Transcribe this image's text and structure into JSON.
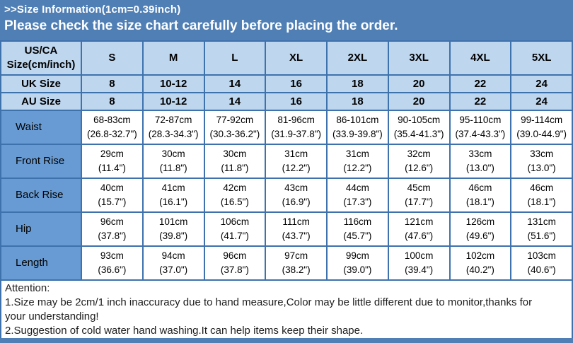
{
  "banner": {
    "title": ">>Size Information(1cm=0.39inch)",
    "subtitle": "Please check the size chart carefully before placing the order."
  },
  "table": {
    "corner_label": "US/CA\nSize(cm/inch)",
    "size_cols": [
      "S",
      "M",
      "L",
      "XL",
      "2XL",
      "3XL",
      "4XL",
      "5XL"
    ],
    "uk": {
      "label": "UK Size",
      "cells": [
        "8",
        "10-12",
        "14",
        "16",
        "18",
        "20",
        "22",
        "24"
      ]
    },
    "au": {
      "label": "AU Size",
      "cells": [
        "8",
        "10-12",
        "14",
        "16",
        "18",
        "20",
        "22",
        "24"
      ]
    },
    "measurements": [
      {
        "label": "Waist",
        "cells": [
          "68-83cm\n(26.8-32.7\")",
          "72-87cm\n(28.3-34.3\")",
          "77-92cm\n(30.3-36.2\")",
          "81-96cm\n(31.9-37.8\")",
          "86-101cm\n(33.9-39.8\")",
          "90-105cm\n(35.4-41.3\")",
          "95-110cm\n(37.4-43.3\")",
          "99-114cm\n(39.0-44.9\")"
        ]
      },
      {
        "label": "Front Rise",
        "cells": [
          "29cm\n(11.4\")",
          "30cm\n(11.8\")",
          "30cm\n(11.8\")",
          "31cm\n(12.2\")",
          "31cm\n(12.2\")",
          "32cm\n(12.6\")",
          "33cm\n(13.0\")",
          "33cm\n(13.0\")"
        ]
      },
      {
        "label": "Back Rise",
        "cells": [
          "40cm\n(15.7\")",
          "41cm\n(16.1\")",
          "42cm\n(16.5\")",
          "43cm\n(16.9\")",
          "44cm\n(17.3\")",
          "45cm\n(17.7\")",
          "46cm\n(18.1\")",
          "46cm\n(18.1\")"
        ]
      },
      {
        "label": "Hip",
        "cells": [
          "96cm\n(37.8\")",
          "101cm\n(39.8\")",
          "106cm\n(41.7\")",
          "111cm\n(43.7\")",
          "116cm\n(45.7\")",
          "121cm\n(47.6\")",
          "126cm\n(49.6\")",
          "131cm\n(51.6\")"
        ]
      },
      {
        "label": "Length",
        "cells": [
          "93cm\n(36.6\")",
          "94cm\n(37.0\")",
          "96cm\n(37.8\")",
          "97cm\n(38.2\")",
          "99cm\n(39.0\")",
          "100cm\n(39.4\")",
          "102cm\n(40.2\")",
          "103cm\n(40.6\")"
        ]
      }
    ]
  },
  "attention": {
    "title": "Attention:",
    "note1": "1.Size may be 2cm/1 inch inaccuracy due to hand measure,Color may be little different due to monitor,thanks for your understanding!",
    "note2": "2.Suggestion of cold water hand washing.It can help items keep their shape."
  },
  "colors": {
    "banner_blue": "#4F7FB5",
    "header_cell_blue": "#BED6EE",
    "label_cell_blue": "#689BD3",
    "border_blue": "#3E72AD",
    "bar_blue": "#4F7FB5"
  }
}
